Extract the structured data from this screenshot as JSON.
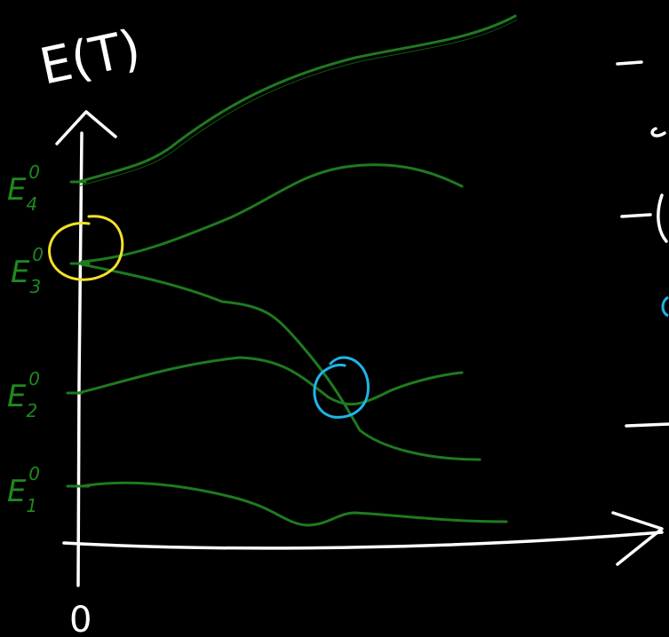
{
  "axis_label": "E(T)",
  "origin": "0",
  "levels": [
    {
      "symbol": "E",
      "sub": "4",
      "sup": "0"
    },
    {
      "symbol": "E",
      "sub": "3",
      "sup": "0"
    },
    {
      "symbol": "E",
      "sub": "2",
      "sup": "0"
    },
    {
      "symbol": "E",
      "sub": "1",
      "sup": "0"
    }
  ]
}
